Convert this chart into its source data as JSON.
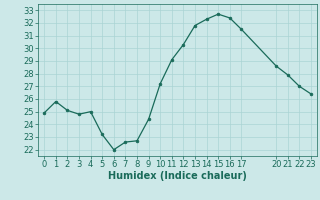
{
  "x": [
    0,
    1,
    2,
    3,
    4,
    5,
    6,
    7,
    8,
    9,
    10,
    11,
    12,
    13,
    14,
    15,
    16,
    17,
    20,
    21,
    22,
    23
  ],
  "y": [
    24.9,
    25.8,
    25.1,
    24.8,
    25.0,
    23.2,
    22.0,
    22.6,
    22.7,
    24.4,
    27.2,
    29.1,
    30.3,
    31.8,
    32.3,
    32.7,
    32.4,
    31.5,
    28.6,
    27.9,
    27.0,
    26.4
  ],
  "line_color": "#1a6b5a",
  "marker_color": "#1a6b5a",
  "bg_color": "#cce8e8",
  "grid_color": "#aad4d4",
  "xlabel": "Humidex (Indice chaleur)",
  "xlim": [
    -0.5,
    23.5
  ],
  "ylim": [
    21.5,
    33.5
  ],
  "yticks": [
    22,
    23,
    24,
    25,
    26,
    27,
    28,
    29,
    30,
    31,
    32,
    33
  ],
  "xtick_positions": [
    0,
    1,
    2,
    3,
    4,
    5,
    6,
    7,
    8,
    9,
    10,
    11,
    12,
    13,
    14,
    15,
    16,
    17,
    20,
    21,
    22,
    23
  ],
  "xtick_labels": [
    "0",
    "1",
    "2",
    "3",
    "4",
    "5",
    "6",
    "7",
    "8",
    "9",
    "10",
    "11",
    "12",
    "13",
    "14",
    "15",
    "16",
    "17",
    "20",
    "21",
    "22",
    "23"
  ],
  "label_fontsize": 7,
  "tick_fontsize": 6
}
